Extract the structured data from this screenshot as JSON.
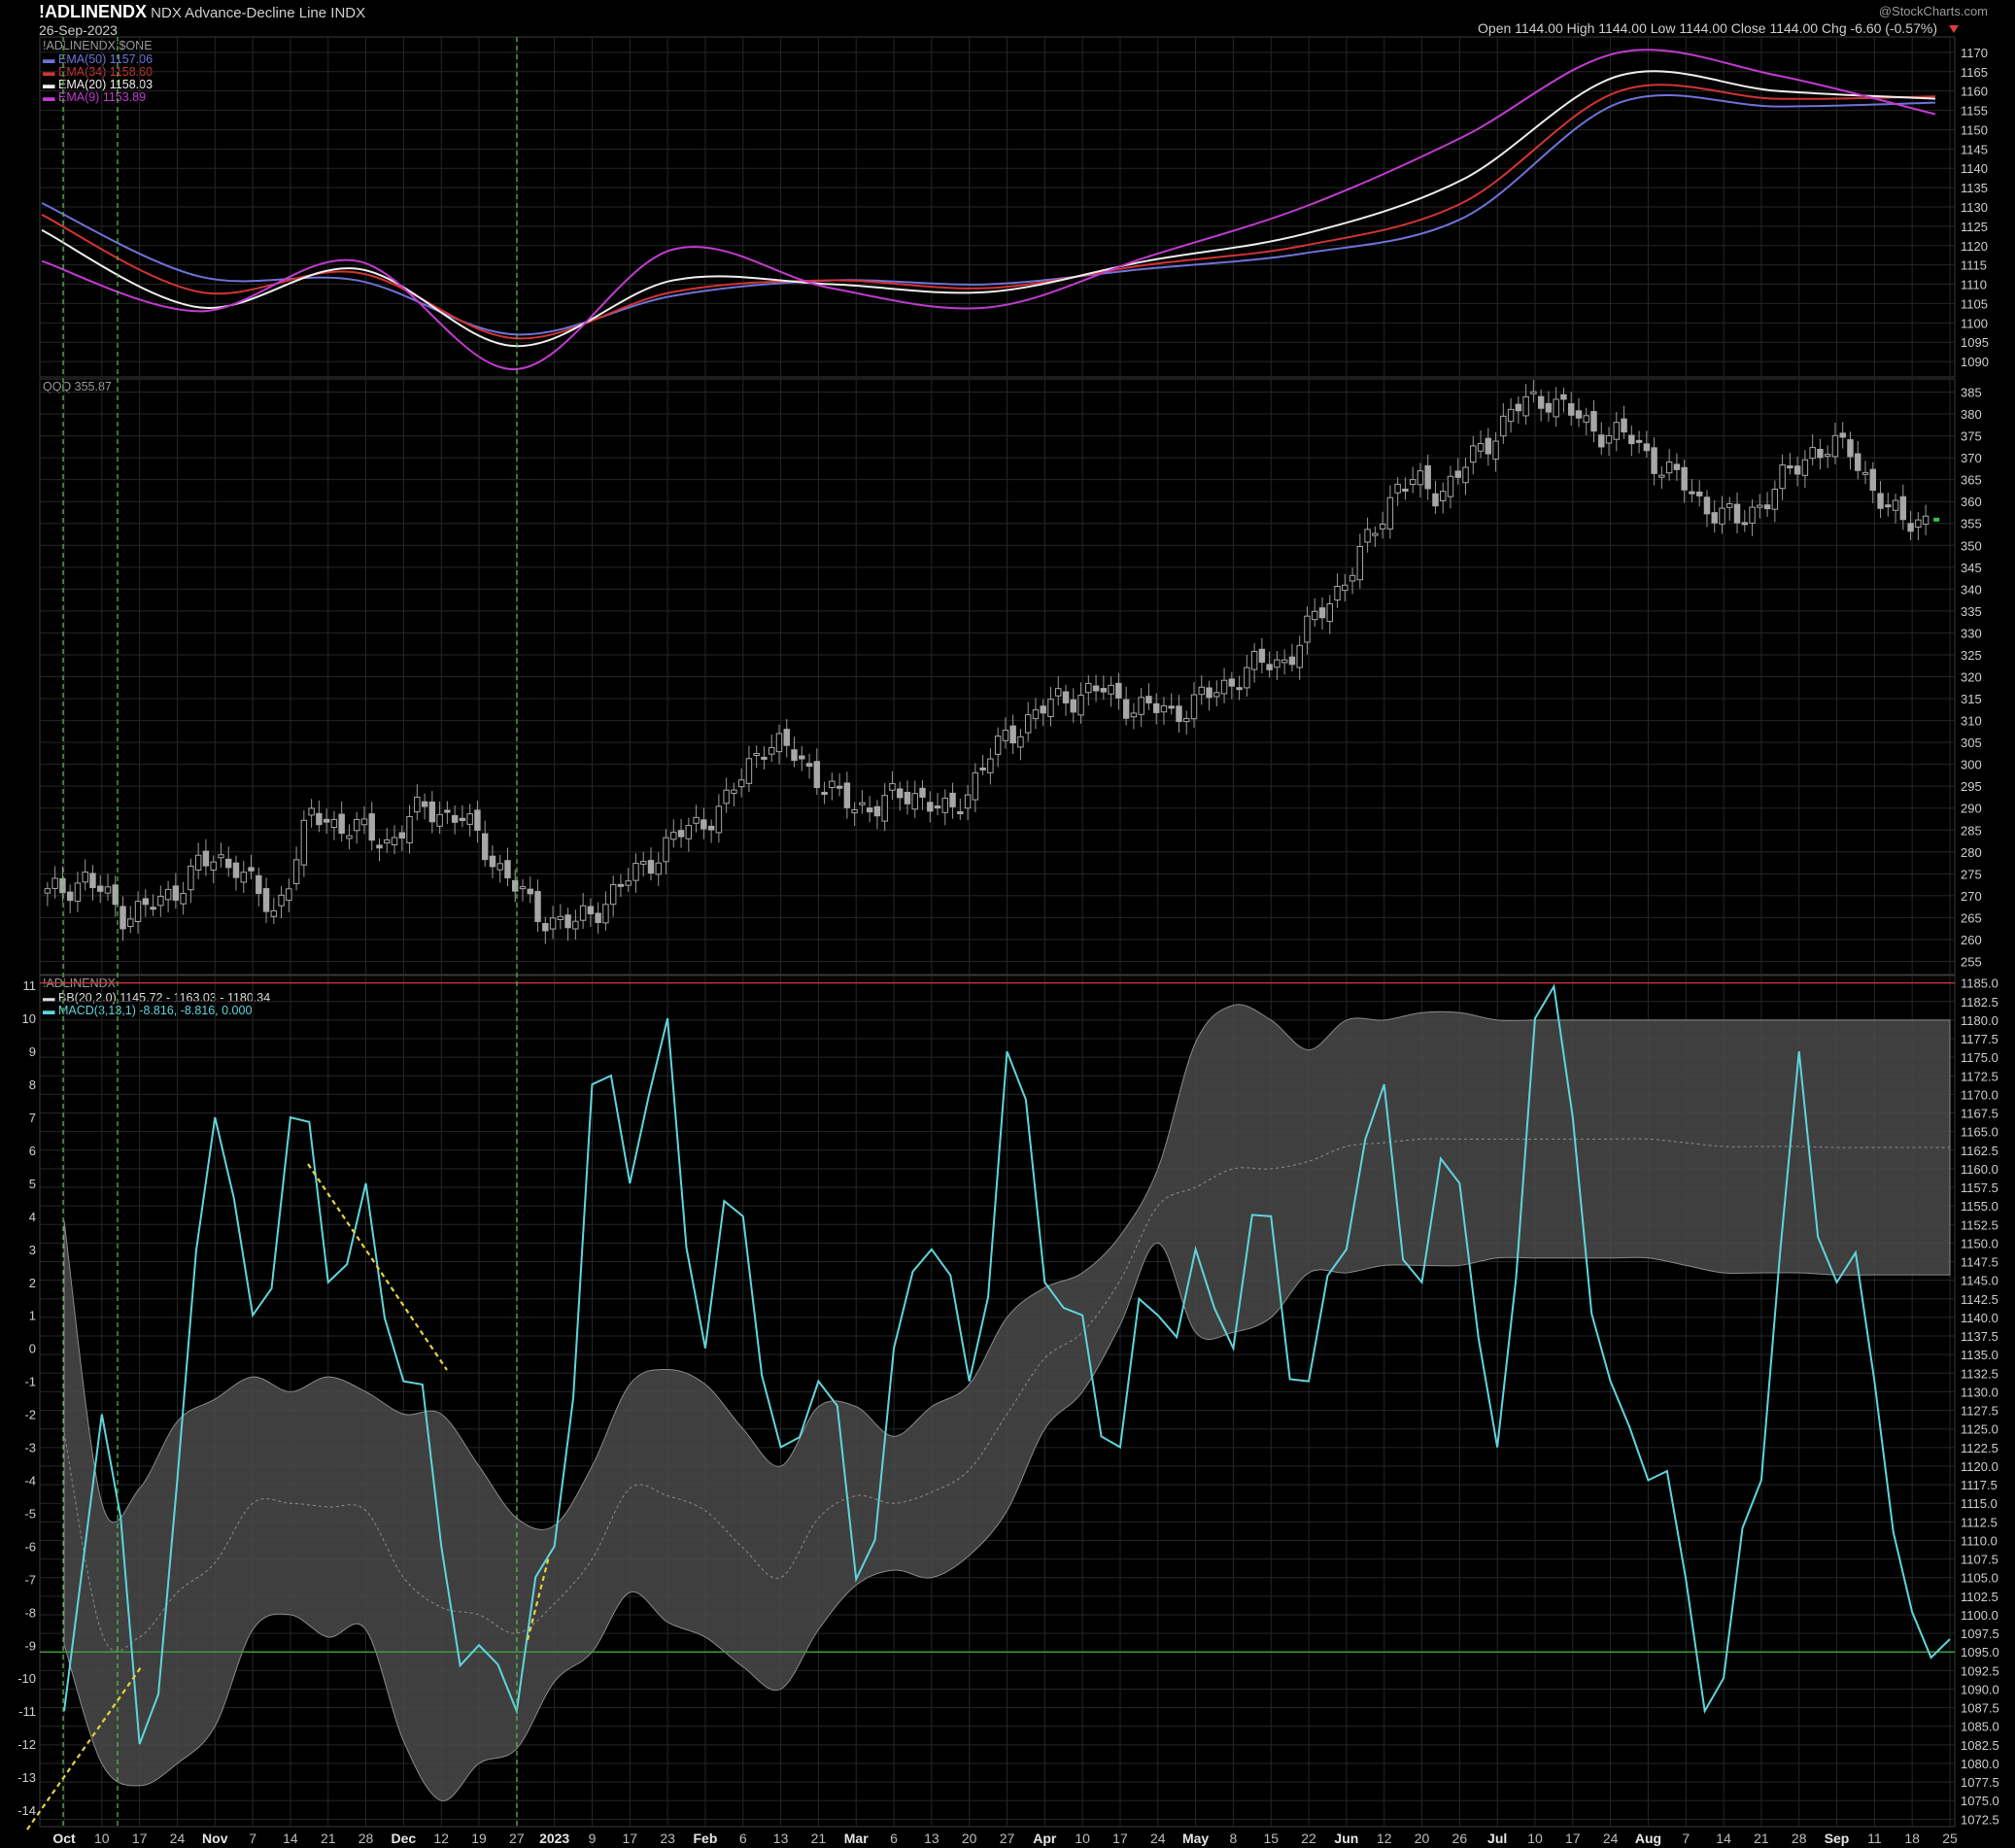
{
  "header": {
    "symbol": "!ADLINENDX",
    "name": "NDX Advance-Decline Line",
    "exchange": "INDX",
    "date": "26-Sep-2023",
    "watermark": "@StockCharts.com",
    "ohlc": "Open 1144.00  High 1144.00  Low 1144.00  Close 1144.00  Chg -6.60 (-0.57%)"
  },
  "panel1": {
    "title": "!ADLINENDX:$ONE",
    "legend": [
      {
        "label": "EMA(50) 1157.06",
        "color": "#6f72d8"
      },
      {
        "label": "EMA(34) 1158.60",
        "color": "#d23434"
      },
      {
        "label": "EMA(20) 1158.03",
        "color": "#eeeeee"
      },
      {
        "label": "EMA(9) 1153.89",
        "color": "#c23ad0"
      }
    ],
    "ticks": [
      "1090",
      "1095",
      "1100",
      "1105",
      "1110",
      "1115",
      "1120",
      "1125",
      "1130",
      "1135",
      "1140",
      "1145",
      "1150",
      "1155",
      "1160",
      "1165",
      "1170"
    ]
  },
  "panel2": {
    "title": "QQQ 355.87",
    "ticks": [
      "255",
      "260",
      "265",
      "270",
      "275",
      "280",
      "285",
      "290",
      "295",
      "300",
      "305",
      "310",
      "315",
      "320",
      "325",
      "330",
      "335",
      "340",
      "345",
      "350",
      "355",
      "360",
      "365",
      "370",
      "375",
      "380",
      "385"
    ]
  },
  "panel3": {
    "title": "!ADLINENDX",
    "legend": [
      {
        "label": "BB(20,2.0) 1145.72 - 1163.03 - 1180.34",
        "color": "#dddddd"
      },
      {
        "label": "MACD(3,13,1) -8.816, -8.816, 0.000",
        "color": "#5fd5dc"
      }
    ],
    "left_ticks": [
      "-14",
      "-13",
      "-12",
      "-11",
      "-10",
      "-9",
      "-8",
      "-7",
      "-6",
      "-5",
      "-4",
      "-3",
      "-2",
      "-1",
      "0",
      "1",
      "2",
      "3",
      "4",
      "5",
      "6",
      "7",
      "8",
      "9",
      "10",
      "11"
    ],
    "right_ticks": [
      "1072.5",
      "1075.0",
      "1077.5",
      "1080.0",
      "1082.5",
      "1085.0",
      "1087.5",
      "1090.0",
      "1092.5",
      "1095.0",
      "1097.5",
      "1100.0",
      "1102.5",
      "1105.0",
      "1107.5",
      "1110.0",
      "1112.5",
      "1115.0",
      "1117.5",
      "1120.0",
      "1122.5",
      "1125.0",
      "1127.5",
      "1130.0",
      "1132.5",
      "1135.0",
      "1137.5",
      "1140.0",
      "1142.5",
      "1145.0",
      "1147.5",
      "1150.0",
      "1152.5",
      "1155.0",
      "1157.5",
      "1160.0",
      "1162.5",
      "1165.0",
      "1167.5",
      "1170.0",
      "1172.5",
      "1175.0",
      "1177.5",
      "1180.0",
      "1182.5",
      "1185.0"
    ]
  },
  "x_axis_labels": [
    "Oct",
    "10",
    "17",
    "24",
    "Nov",
    "7",
    "14",
    "21",
    "28",
    "Dec",
    "12",
    "19",
    "27",
    "2023",
    "9",
    "17",
    "23",
    "Feb",
    "6",
    "13",
    "21",
    "Mar",
    "6",
    "13",
    "20",
    "27",
    "Apr",
    "10",
    "17",
    "24",
    "May",
    "8",
    "15",
    "22",
    "Jun",
    "12",
    "20",
    "26",
    "Jul",
    "10",
    "17",
    "24",
    "Aug",
    "7",
    "14",
    "21",
    "28",
    "Sep",
    "11",
    "18",
    "25"
  ],
  "chart_data": [
    {
      "type": "line",
      "title": "!ADLINENDX:$ONE",
      "x": [
        "Oct",
        "Nov",
        "Dec",
        "2023",
        "Feb",
        "Mar",
        "Apr",
        "May",
        "Jun",
        "Jul",
        "Aug",
        "Sep",
        "25"
      ],
      "ylim": [
        1086,
        1174
      ],
      "series": [
        {
          "name": "EMA(50)",
          "color": "#6f72d8",
          "values": [
            1131,
            1112,
            1111,
            1097,
            1107,
            1111,
            1110,
            1114,
            1118,
            1127,
            1157,
            1156,
            1157
          ]
        },
        {
          "name": "EMA(34)",
          "color": "#d23434",
          "values": [
            1128,
            1108,
            1113,
            1096,
            1108,
            1111,
            1109,
            1115,
            1120,
            1131,
            1160,
            1158,
            1158.6
          ]
        },
        {
          "name": "EMA(20)",
          "color": "#eeeeee",
          "values": [
            1124,
            1104,
            1114,
            1094,
            1111,
            1110,
            1108,
            1116,
            1123,
            1137,
            1164,
            1160,
            1158
          ]
        },
        {
          "name": "EMA(9)",
          "color": "#c23ad0",
          "values": [
            1116,
            1103,
            1116,
            1088,
            1119,
            1109,
            1104,
            1117,
            1130,
            1148,
            1170,
            1164,
            1154
          ]
        }
      ]
    },
    {
      "type": "line",
      "title": "QQQ 355.87",
      "x": [
        "Oct",
        "10",
        "17",
        "24",
        "Nov",
        "7",
        "14",
        "21",
        "28",
        "Dec",
        "12",
        "19",
        "27",
        "2023",
        "9",
        "17",
        "23",
        "Feb",
        "6",
        "13",
        "21",
        "Mar",
        "6",
        "13",
        "20",
        "27",
        "Apr",
        "10",
        "17",
        "24",
        "May",
        "8",
        "15",
        "22",
        "Jun",
        "12",
        "20",
        "26",
        "Jul",
        "10",
        "17",
        "24",
        "Aug",
        "7",
        "14",
        "21",
        "28",
        "Sep",
        "11",
        "18",
        "25"
      ],
      "ylim": [
        252,
        388
      ],
      "values": [
        270,
        274,
        266,
        268,
        277,
        278,
        265,
        288,
        286,
        282,
        290,
        288,
        277,
        266,
        263,
        270,
        278,
        285,
        290,
        305,
        302,
        292,
        290,
        294,
        288,
        301,
        310,
        315,
        317,
        313,
        312,
        316,
        322,
        324,
        336,
        348,
        365,
        362,
        370,
        381,
        384,
        377,
        375,
        368,
        360,
        355,
        363,
        372,
        372,
        357,
        355.87
      ]
    },
    {
      "type": "line",
      "title": "!ADLINENDX",
      "x": [
        "Oct",
        "10",
        "17",
        "24",
        "Nov",
        "7",
        "14",
        "21",
        "28",
        "Dec",
        "12",
        "19",
        "27",
        "2023",
        "9",
        "17",
        "23",
        "Feb",
        "6",
        "13",
        "21",
        "Mar",
        "6",
        "13",
        "20",
        "27",
        "Apr",
        "10",
        "17",
        "24",
        "May",
        "8",
        "15",
        "22",
        "Jun",
        "12",
        "20",
        "26",
        "Jul",
        "10",
        "17",
        "24",
        "Aug",
        "7",
        "14",
        "21",
        "28",
        "Sep",
        "11",
        "18",
        "25"
      ],
      "ylim_left": [
        -14.5,
        11.3
      ],
      "ylim_right": [
        1071.5,
        1186
      ],
      "hlines": [
        {
          "value": 1185,
          "color": "#c43131"
        },
        {
          "value": 1095,
          "color": "#3f9a3f"
        }
      ],
      "series": [
        {
          "name": "MACD(3,13,1)",
          "axis": "left",
          "color": "#5fd5dc",
          "values": [
            -11,
            -2,
            -12,
            -4,
            7,
            1,
            7,
            2,
            5,
            -1,
            -6,
            -9,
            -11,
            -6,
            8,
            5,
            10,
            0,
            4,
            -3,
            -1,
            -7,
            0,
            3,
            -1,
            9,
            2,
            1,
            -3,
            1,
            3,
            0,
            4,
            -1,
            3,
            8,
            2,
            5,
            -3,
            10,
            7,
            -1,
            -4,
            -7,
            -10,
            -4,
            9,
            2,
            -1,
            -8,
            -8.816
          ]
        },
        {
          "name": "BB upper",
          "axis": "right",
          "color": "#bdbdbd",
          "values": [
            1153,
            1115,
            1117,
            1126,
            1129,
            1132,
            1130,
            1132,
            1130,
            1127,
            1127,
            1120,
            1113,
            1112,
            1120,
            1131,
            1133,
            1131,
            1125,
            1120,
            1128,
            1128,
            1124,
            1128,
            1131,
            1140,
            1144,
            1146,
            1151,
            1160,
            1177,
            1182,
            1180,
            1176,
            1180,
            1180,
            1181,
            1181,
            1180,
            1180,
            1180,
            1180,
            1180,
            1180,
            1180,
            1180,
            1180,
            1180,
            1180,
            1180,
            1180
          ]
        },
        {
          "name": "BB lower",
          "axis": "right",
          "color": "#bdbdbd",
          "values": [
            1096,
            1080,
            1077,
            1080,
            1085,
            1098,
            1100,
            1097,
            1098,
            1083,
            1075,
            1080,
            1082,
            1091,
            1095,
            1103,
            1099,
            1097,
            1093,
            1090,
            1098,
            1104,
            1106,
            1105,
            1108,
            1114,
            1125,
            1130,
            1139,
            1150,
            1138,
            1138,
            1140,
            1146,
            1146,
            1147,
            1147,
            1147,
            1148,
            1148,
            1148,
            1148,
            1148,
            1147,
            1146,
            1146,
            1146,
            1145.72,
            1145.72,
            1145.72,
            1145.72
          ]
        }
      ]
    }
  ]
}
